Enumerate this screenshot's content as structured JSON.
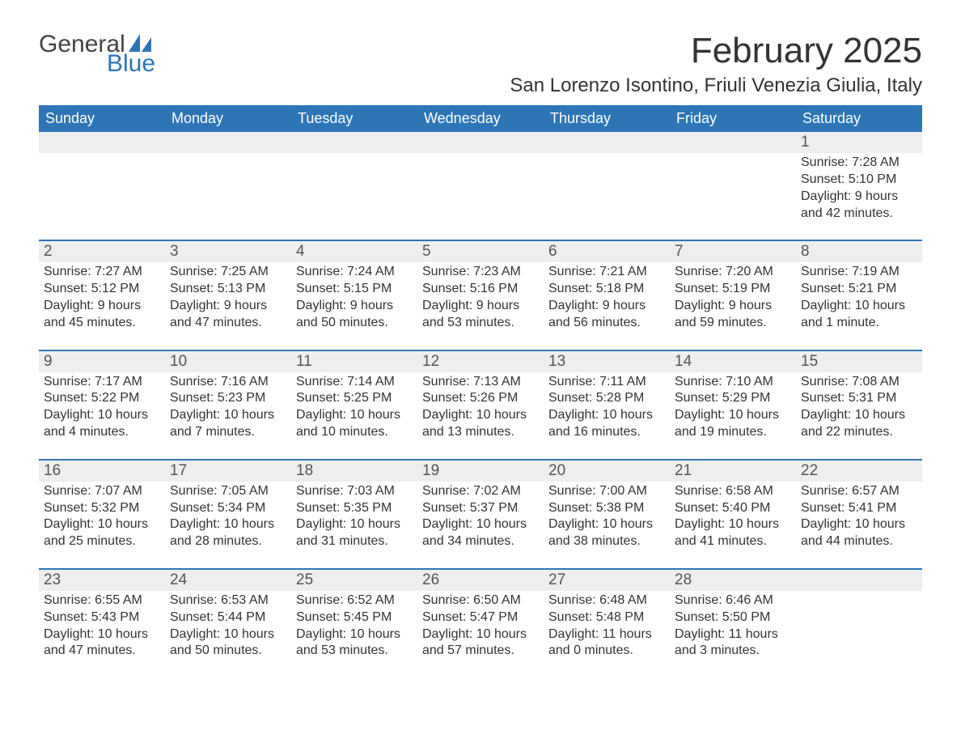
{
  "brand": {
    "general": "General",
    "blue": "Blue",
    "sail_color": "#2e75b6"
  },
  "title": "February 2025",
  "location": "San Lorenzo Isontino, Friuli Venezia Giulia, Italy",
  "colors": {
    "header_bg": "#2e75b6",
    "header_text": "#ffffff",
    "daynum_bg": "#eeeeee",
    "week_border": "#2e75b6",
    "body_text": "#333333"
  },
  "typography": {
    "title_fontsize": 44,
    "location_fontsize": 24,
    "dayhead_fontsize": 18,
    "daynum_fontsize": 19,
    "body_fontsize": 16
  },
  "day_headers": [
    "Sunday",
    "Monday",
    "Tuesday",
    "Wednesday",
    "Thursday",
    "Friday",
    "Saturday"
  ],
  "labels": {
    "sunrise": "Sunrise:",
    "sunset": "Sunset:",
    "daylight": "Daylight:"
  },
  "weeks": [
    [
      null,
      null,
      null,
      null,
      null,
      null,
      {
        "n": "1",
        "sunrise": "7:28 AM",
        "sunset": "5:10 PM",
        "daylight": "9 hours and 42 minutes."
      }
    ],
    [
      {
        "n": "2",
        "sunrise": "7:27 AM",
        "sunset": "5:12 PM",
        "daylight": "9 hours and 45 minutes."
      },
      {
        "n": "3",
        "sunrise": "7:25 AM",
        "sunset": "5:13 PM",
        "daylight": "9 hours and 47 minutes."
      },
      {
        "n": "4",
        "sunrise": "7:24 AM",
        "sunset": "5:15 PM",
        "daylight": "9 hours and 50 minutes."
      },
      {
        "n": "5",
        "sunrise": "7:23 AM",
        "sunset": "5:16 PM",
        "daylight": "9 hours and 53 minutes."
      },
      {
        "n": "6",
        "sunrise": "7:21 AM",
        "sunset": "5:18 PM",
        "daylight": "9 hours and 56 minutes."
      },
      {
        "n": "7",
        "sunrise": "7:20 AM",
        "sunset": "5:19 PM",
        "daylight": "9 hours and 59 minutes."
      },
      {
        "n": "8",
        "sunrise": "7:19 AM",
        "sunset": "5:21 PM",
        "daylight": "10 hours and 1 minute."
      }
    ],
    [
      {
        "n": "9",
        "sunrise": "7:17 AM",
        "sunset": "5:22 PM",
        "daylight": "10 hours and 4 minutes."
      },
      {
        "n": "10",
        "sunrise": "7:16 AM",
        "sunset": "5:23 PM",
        "daylight": "10 hours and 7 minutes."
      },
      {
        "n": "11",
        "sunrise": "7:14 AM",
        "sunset": "5:25 PM",
        "daylight": "10 hours and 10 minutes."
      },
      {
        "n": "12",
        "sunrise": "7:13 AM",
        "sunset": "5:26 PM",
        "daylight": "10 hours and 13 minutes."
      },
      {
        "n": "13",
        "sunrise": "7:11 AM",
        "sunset": "5:28 PM",
        "daylight": "10 hours and 16 minutes."
      },
      {
        "n": "14",
        "sunrise": "7:10 AM",
        "sunset": "5:29 PM",
        "daylight": "10 hours and 19 minutes."
      },
      {
        "n": "15",
        "sunrise": "7:08 AM",
        "sunset": "5:31 PM",
        "daylight": "10 hours and 22 minutes."
      }
    ],
    [
      {
        "n": "16",
        "sunrise": "7:07 AM",
        "sunset": "5:32 PM",
        "daylight": "10 hours and 25 minutes."
      },
      {
        "n": "17",
        "sunrise": "7:05 AM",
        "sunset": "5:34 PM",
        "daylight": "10 hours and 28 minutes."
      },
      {
        "n": "18",
        "sunrise": "7:03 AM",
        "sunset": "5:35 PM",
        "daylight": "10 hours and 31 minutes."
      },
      {
        "n": "19",
        "sunrise": "7:02 AM",
        "sunset": "5:37 PM",
        "daylight": "10 hours and 34 minutes."
      },
      {
        "n": "20",
        "sunrise": "7:00 AM",
        "sunset": "5:38 PM",
        "daylight": "10 hours and 38 minutes."
      },
      {
        "n": "21",
        "sunrise": "6:58 AM",
        "sunset": "5:40 PM",
        "daylight": "10 hours and 41 minutes."
      },
      {
        "n": "22",
        "sunrise": "6:57 AM",
        "sunset": "5:41 PM",
        "daylight": "10 hours and 44 minutes."
      }
    ],
    [
      {
        "n": "23",
        "sunrise": "6:55 AM",
        "sunset": "5:43 PM",
        "daylight": "10 hours and 47 minutes."
      },
      {
        "n": "24",
        "sunrise": "6:53 AM",
        "sunset": "5:44 PM",
        "daylight": "10 hours and 50 minutes."
      },
      {
        "n": "25",
        "sunrise": "6:52 AM",
        "sunset": "5:45 PM",
        "daylight": "10 hours and 53 minutes."
      },
      {
        "n": "26",
        "sunrise": "6:50 AM",
        "sunset": "5:47 PM",
        "daylight": "10 hours and 57 minutes."
      },
      {
        "n": "27",
        "sunrise": "6:48 AM",
        "sunset": "5:48 PM",
        "daylight": "11 hours and 0 minutes."
      },
      {
        "n": "28",
        "sunrise": "6:46 AM",
        "sunset": "5:50 PM",
        "daylight": "11 hours and 3 minutes."
      },
      null
    ]
  ]
}
